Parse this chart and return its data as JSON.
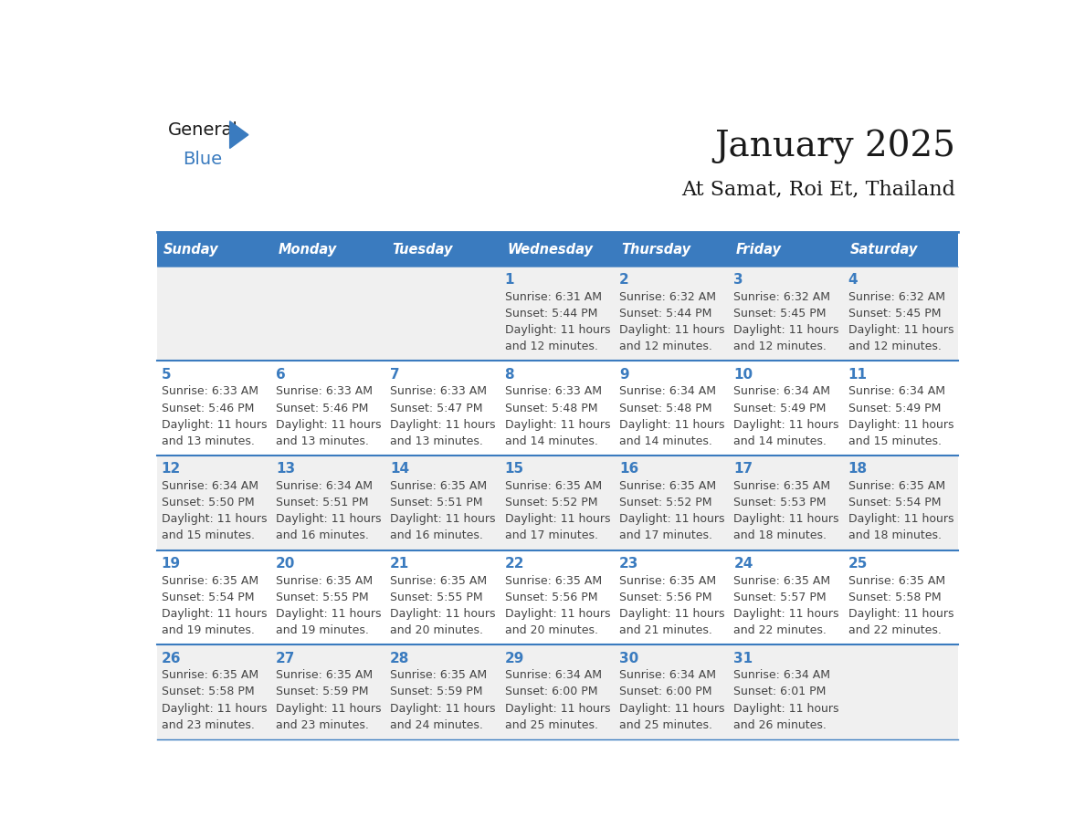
{
  "title": "January 2025",
  "subtitle": "At Samat, Roi Et, Thailand",
  "header_color": "#3a7bbf",
  "header_text_color": "#ffffff",
  "cell_bg_odd": "#f0f0f0",
  "cell_bg_even": "#ffffff",
  "day_text_color": "#3a7bbf",
  "info_text_color": "#444444",
  "days_of_week": [
    "Sunday",
    "Monday",
    "Tuesday",
    "Wednesday",
    "Thursday",
    "Friday",
    "Saturday"
  ],
  "weeks": [
    [
      {
        "day": "",
        "sunrise": "",
        "sunset": "",
        "daylight_hours": "",
        "daylight_mins": ""
      },
      {
        "day": "",
        "sunrise": "",
        "sunset": "",
        "daylight_hours": "",
        "daylight_mins": ""
      },
      {
        "day": "",
        "sunrise": "",
        "sunset": "",
        "daylight_hours": "",
        "daylight_mins": ""
      },
      {
        "day": "1",
        "sunrise": "6:31 AM",
        "sunset": "5:44 PM",
        "daylight_hours": "11 hours",
        "daylight_mins": "and 12 minutes."
      },
      {
        "day": "2",
        "sunrise": "6:32 AM",
        "sunset": "5:44 PM",
        "daylight_hours": "11 hours",
        "daylight_mins": "and 12 minutes."
      },
      {
        "day": "3",
        "sunrise": "6:32 AM",
        "sunset": "5:45 PM",
        "daylight_hours": "11 hours",
        "daylight_mins": "and 12 minutes."
      },
      {
        "day": "4",
        "sunrise": "6:32 AM",
        "sunset": "5:45 PM",
        "daylight_hours": "11 hours",
        "daylight_mins": "and 12 minutes."
      }
    ],
    [
      {
        "day": "5",
        "sunrise": "6:33 AM",
        "sunset": "5:46 PM",
        "daylight_hours": "11 hours",
        "daylight_mins": "and 13 minutes."
      },
      {
        "day": "6",
        "sunrise": "6:33 AM",
        "sunset": "5:46 PM",
        "daylight_hours": "11 hours",
        "daylight_mins": "and 13 minutes."
      },
      {
        "day": "7",
        "sunrise": "6:33 AM",
        "sunset": "5:47 PM",
        "daylight_hours": "11 hours",
        "daylight_mins": "and 13 minutes."
      },
      {
        "day": "8",
        "sunrise": "6:33 AM",
        "sunset": "5:48 PM",
        "daylight_hours": "11 hours",
        "daylight_mins": "and 14 minutes."
      },
      {
        "day": "9",
        "sunrise": "6:34 AM",
        "sunset": "5:48 PM",
        "daylight_hours": "11 hours",
        "daylight_mins": "and 14 minutes."
      },
      {
        "day": "10",
        "sunrise": "6:34 AM",
        "sunset": "5:49 PM",
        "daylight_hours": "11 hours",
        "daylight_mins": "and 14 minutes."
      },
      {
        "day": "11",
        "sunrise": "6:34 AM",
        "sunset": "5:49 PM",
        "daylight_hours": "11 hours",
        "daylight_mins": "and 15 minutes."
      }
    ],
    [
      {
        "day": "12",
        "sunrise": "6:34 AM",
        "sunset": "5:50 PM",
        "daylight_hours": "11 hours",
        "daylight_mins": "and 15 minutes."
      },
      {
        "day": "13",
        "sunrise": "6:34 AM",
        "sunset": "5:51 PM",
        "daylight_hours": "11 hours",
        "daylight_mins": "and 16 minutes."
      },
      {
        "day": "14",
        "sunrise": "6:35 AM",
        "sunset": "5:51 PM",
        "daylight_hours": "11 hours",
        "daylight_mins": "and 16 minutes."
      },
      {
        "day": "15",
        "sunrise": "6:35 AM",
        "sunset": "5:52 PM",
        "daylight_hours": "11 hours",
        "daylight_mins": "and 17 minutes."
      },
      {
        "day": "16",
        "sunrise": "6:35 AM",
        "sunset": "5:52 PM",
        "daylight_hours": "11 hours",
        "daylight_mins": "and 17 minutes."
      },
      {
        "day": "17",
        "sunrise": "6:35 AM",
        "sunset": "5:53 PM",
        "daylight_hours": "11 hours",
        "daylight_mins": "and 18 minutes."
      },
      {
        "day": "18",
        "sunrise": "6:35 AM",
        "sunset": "5:54 PM",
        "daylight_hours": "11 hours",
        "daylight_mins": "and 18 minutes."
      }
    ],
    [
      {
        "day": "19",
        "sunrise": "6:35 AM",
        "sunset": "5:54 PM",
        "daylight_hours": "11 hours",
        "daylight_mins": "and 19 minutes."
      },
      {
        "day": "20",
        "sunrise": "6:35 AM",
        "sunset": "5:55 PM",
        "daylight_hours": "11 hours",
        "daylight_mins": "and 19 minutes."
      },
      {
        "day": "21",
        "sunrise": "6:35 AM",
        "sunset": "5:55 PM",
        "daylight_hours": "11 hours",
        "daylight_mins": "and 20 minutes."
      },
      {
        "day": "22",
        "sunrise": "6:35 AM",
        "sunset": "5:56 PM",
        "daylight_hours": "11 hours",
        "daylight_mins": "and 20 minutes."
      },
      {
        "day": "23",
        "sunrise": "6:35 AM",
        "sunset": "5:56 PM",
        "daylight_hours": "11 hours",
        "daylight_mins": "and 21 minutes."
      },
      {
        "day": "24",
        "sunrise": "6:35 AM",
        "sunset": "5:57 PM",
        "daylight_hours": "11 hours",
        "daylight_mins": "and 22 minutes."
      },
      {
        "day": "25",
        "sunrise": "6:35 AM",
        "sunset": "5:58 PM",
        "daylight_hours": "11 hours",
        "daylight_mins": "and 22 minutes."
      }
    ],
    [
      {
        "day": "26",
        "sunrise": "6:35 AM",
        "sunset": "5:58 PM",
        "daylight_hours": "11 hours",
        "daylight_mins": "and 23 minutes."
      },
      {
        "day": "27",
        "sunrise": "6:35 AM",
        "sunset": "5:59 PM",
        "daylight_hours": "11 hours",
        "daylight_mins": "and 23 minutes."
      },
      {
        "day": "28",
        "sunrise": "6:35 AM",
        "sunset": "5:59 PM",
        "daylight_hours": "11 hours",
        "daylight_mins": "and 24 minutes."
      },
      {
        "day": "29",
        "sunrise": "6:34 AM",
        "sunset": "6:00 PM",
        "daylight_hours": "11 hours",
        "daylight_mins": "and 25 minutes."
      },
      {
        "day": "30",
        "sunrise": "6:34 AM",
        "sunset": "6:00 PM",
        "daylight_hours": "11 hours",
        "daylight_mins": "and 25 minutes."
      },
      {
        "day": "31",
        "sunrise": "6:34 AM",
        "sunset": "6:01 PM",
        "daylight_hours": "11 hours",
        "daylight_mins": "and 26 minutes."
      },
      {
        "day": "",
        "sunrise": "",
        "sunset": "",
        "daylight_hours": "",
        "daylight_mins": ""
      }
    ]
  ]
}
